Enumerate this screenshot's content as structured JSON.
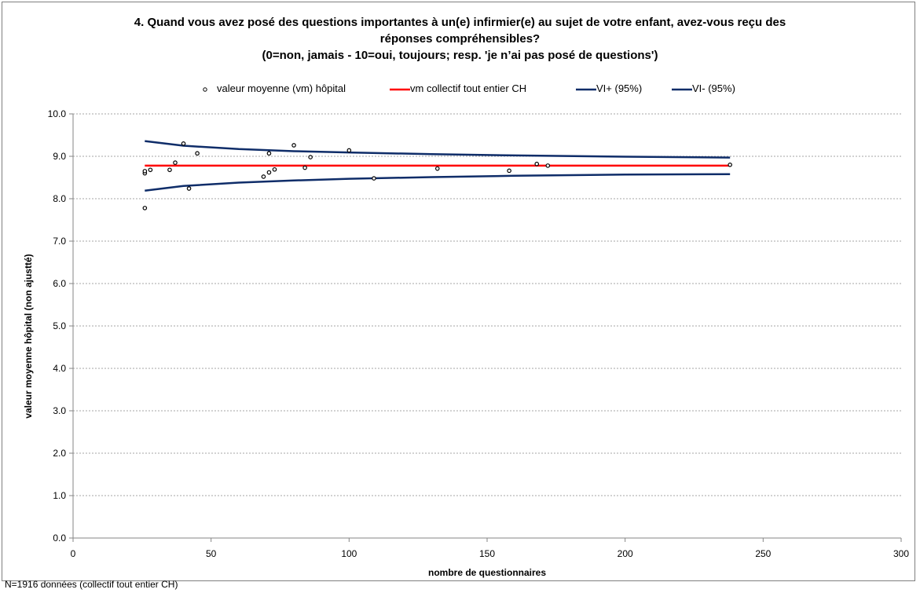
{
  "chart_data": {
    "type": "scatter",
    "title_lines": [
      "4. Quand vous avez posé des questions importantes à un(e) infirmier(e) au sujet de votre enfant, avez-vous reçu des",
      "réponses compréhensibles?",
      "(0=non, jamais - 10=oui, toujours; resp. 'je n’ai pas posé de questions')"
    ],
    "xlabel": "nombre de questionnaires",
    "ylabel": "valeur moyenne hôpital (non ajustté)",
    "xlim": [
      0,
      300
    ],
    "ylim": [
      0,
      10
    ],
    "x_ticks": [
      0,
      50,
      100,
      150,
      200,
      250,
      300
    ],
    "y_ticks": [
      0.0,
      1.0,
      2.0,
      3.0,
      4.0,
      5.0,
      6.0,
      7.0,
      8.0,
      9.0,
      10.0
    ],
    "y_tick_labels": [
      "0.0",
      "1.0",
      "2.0",
      "3.0",
      "4.0",
      "5.0",
      "6.0",
      "7.0",
      "8.0",
      "9.0",
      "10.0"
    ],
    "grid": true,
    "legend_position": "top",
    "series": [
      {
        "name": "valeur moyenne (vm) hôpital",
        "kind": "points",
        "color": "#000000",
        "points": [
          [
            26,
            7.78
          ],
          [
            26,
            8.6
          ],
          [
            26,
            8.65
          ],
          [
            28,
            8.68
          ],
          [
            35,
            8.68
          ],
          [
            37,
            8.85
          ],
          [
            40,
            9.3
          ],
          [
            42,
            8.24
          ],
          [
            45,
            9.07
          ],
          [
            69,
            8.52
          ],
          [
            71,
            8.62
          ],
          [
            71,
            9.07
          ],
          [
            73,
            8.69
          ],
          [
            80,
            9.26
          ],
          [
            84,
            8.73
          ],
          [
            86,
            8.98
          ],
          [
            100,
            9.14
          ],
          [
            109,
            8.48
          ],
          [
            132,
            8.71
          ],
          [
            158,
            8.66
          ],
          [
            168,
            8.82
          ],
          [
            172,
            8.78
          ],
          [
            238,
            8.8
          ]
        ]
      },
      {
        "name": "vm collectif tout entier CH",
        "kind": "line",
        "color": "#ff0000",
        "points": [
          [
            26,
            8.78
          ],
          [
            238,
            8.78
          ]
        ]
      },
      {
        "name": "VI+ (95%)",
        "kind": "line",
        "color": "#0f2d69",
        "points": [
          [
            26,
            9.36
          ],
          [
            40,
            9.25
          ],
          [
            60,
            9.17
          ],
          [
            80,
            9.12
          ],
          [
            100,
            9.09
          ],
          [
            130,
            9.05
          ],
          [
            160,
            9.02
          ],
          [
            200,
            8.99
          ],
          [
            238,
            8.97
          ]
        ]
      },
      {
        "name": "VI- (95%)",
        "kind": "line",
        "color": "#0f2d69",
        "points": [
          [
            26,
            8.19
          ],
          [
            40,
            8.3
          ],
          [
            60,
            8.38
          ],
          [
            80,
            8.43
          ],
          [
            100,
            8.47
          ],
          [
            130,
            8.51
          ],
          [
            160,
            8.54
          ],
          [
            200,
            8.57
          ],
          [
            238,
            8.58
          ]
        ]
      }
    ]
  },
  "footnote": "N=1916 données (collectif tout entier CH)"
}
